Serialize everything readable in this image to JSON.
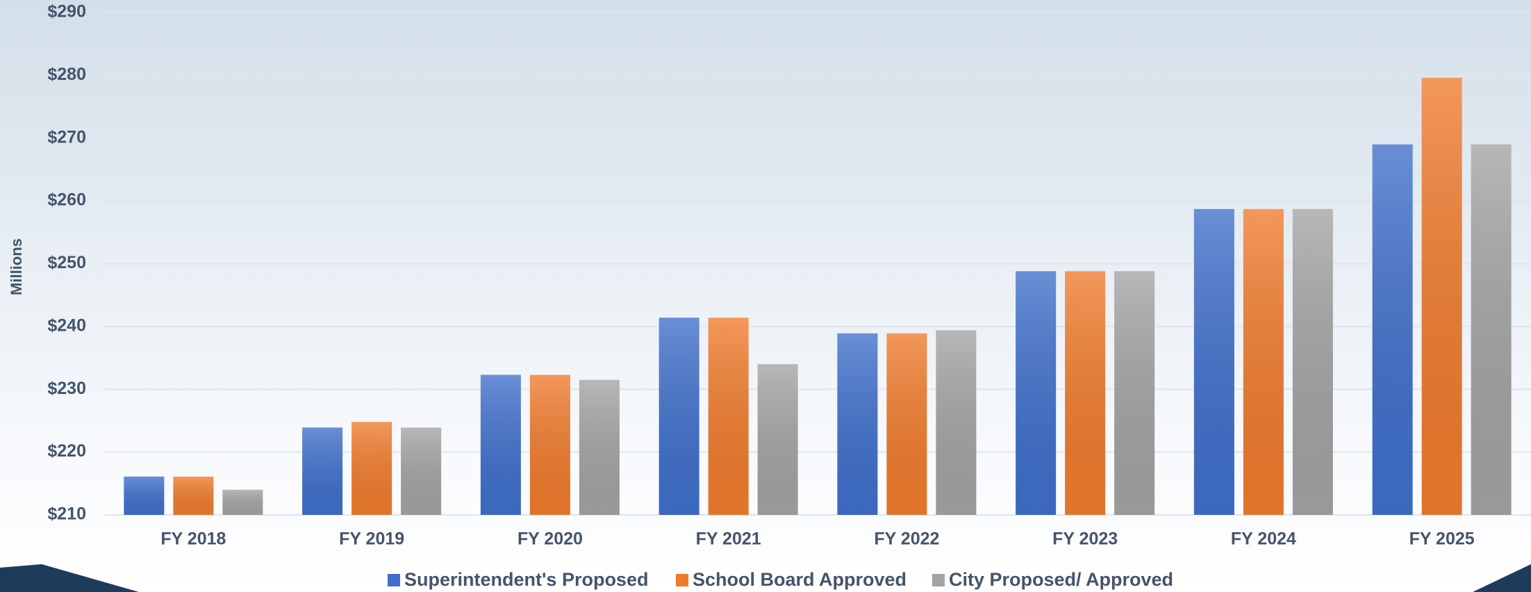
{
  "chart_data": {
    "type": "bar",
    "ylabel": "Millions",
    "categories": [
      "FY 2018",
      "FY 2019",
      "FY 2020",
      "FY 2021",
      "FY 2022",
      "FY 2023",
      "FY 2024",
      "FY 2025"
    ],
    "series": [
      {
        "name": "Superintendent's Proposed",
        "color": "#3f6fcb",
        "values": [
          216.1,
          223.9,
          232.3,
          241.4,
          238.9,
          248.8,
          258.7,
          269.0
        ]
      },
      {
        "name": "School Board Approved",
        "color": "#f07b2c",
        "values": [
          216.1,
          224.8,
          232.3,
          241.4,
          238.9,
          248.8,
          258.7,
          279.6
        ]
      },
      {
        "name": "City Proposed/ Approved",
        "color": "#a3a3a3",
        "values": [
          214.0,
          223.9,
          231.5,
          234.0,
          239.4,
          248.8,
          258.7,
          269.0
        ]
      }
    ],
    "ylim": [
      210,
      290
    ],
    "yticks": [
      {
        "value": 210,
        "label": "$210"
      },
      {
        "value": 220,
        "label": "$220"
      },
      {
        "value": 230,
        "label": "$230"
      },
      {
        "value": 240,
        "label": "$240"
      },
      {
        "value": 250,
        "label": "$250"
      },
      {
        "value": 260,
        "label": "$260"
      },
      {
        "value": 270,
        "label": "$270"
      },
      {
        "value": 280,
        "label": "$280"
      },
      {
        "value": 290,
        "label": "$290"
      }
    ],
    "grid": true,
    "legend": "bottom"
  }
}
